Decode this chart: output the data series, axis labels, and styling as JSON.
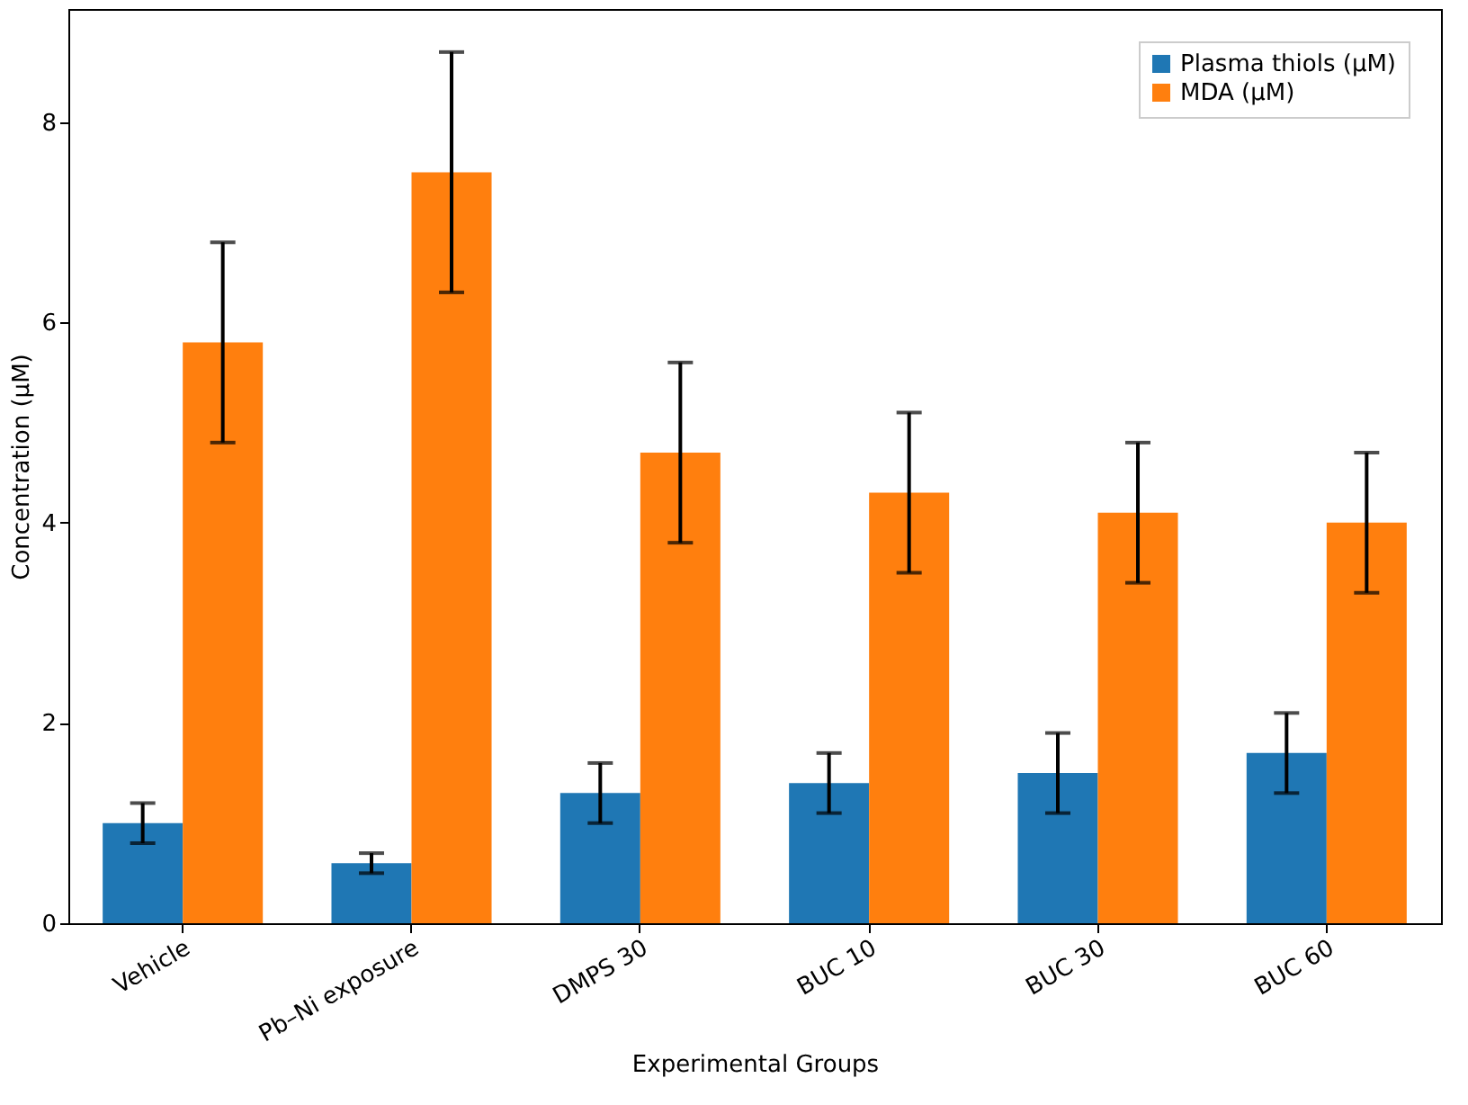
{
  "chart_data": {
    "type": "bar",
    "xlabel": "Experimental Groups",
    "ylabel": "Concentration (µM)",
    "categories": [
      "Vehicle",
      "Pb–Ni exposure",
      "DMPS 30",
      "BUC 10",
      "BUC 30",
      "BUC 60"
    ],
    "series": [
      {
        "name": "Plasma thiols (µM)",
        "color": "#1f77b4",
        "values": [
          1.0,
          0.6,
          1.3,
          1.4,
          1.5,
          1.7
        ],
        "errors": [
          0.2,
          0.1,
          0.3,
          0.3,
          0.4,
          0.4
        ]
      },
      {
        "name": "MDA (µM)",
        "color": "#ff7f0e",
        "values": [
          5.8,
          7.5,
          4.7,
          4.3,
          4.1,
          4.0
        ],
        "errors": [
          1.0,
          1.2,
          0.9,
          0.8,
          0.7,
          0.7
        ]
      }
    ],
    "ylim": [
      0,
      9.13
    ],
    "yticks": [
      0,
      2,
      4,
      6,
      8
    ],
    "grid": false,
    "legend": "top right"
  }
}
